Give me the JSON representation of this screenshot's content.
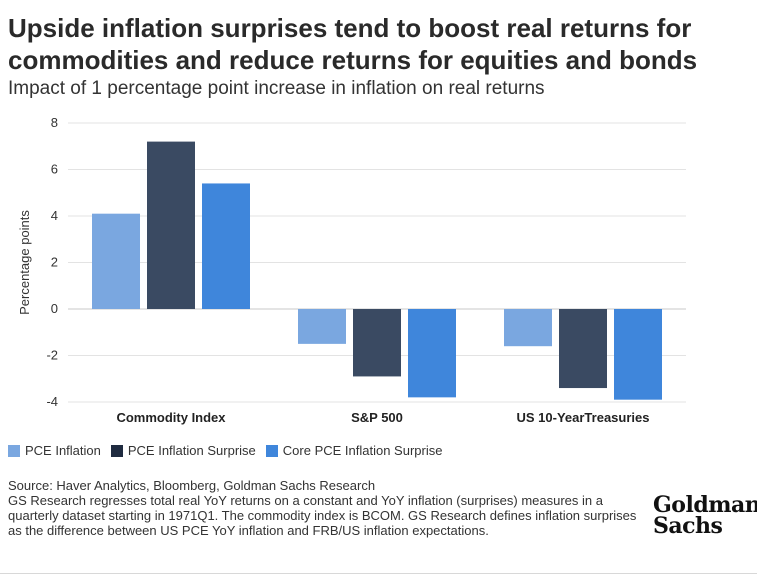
{
  "title": "Upside inflation surprises tend to boost real returns for commodities and reduce returns for equities and bonds",
  "subtitle": "Impact of 1 percentage point increase in inflation on real returns",
  "chart_data": {
    "type": "bar",
    "categories": [
      "Commodity Index",
      "S&P 500",
      "US 10-YearTreasuries"
    ],
    "series": [
      {
        "name": "PCE Inflation",
        "color": "#7aa7e0",
        "values": [
          4.1,
          -1.5,
          -1.6
        ]
      },
      {
        "name": "PCE Inflation Surprise",
        "color": "#3a4a62",
        "values": [
          7.2,
          -2.9,
          -3.4
        ]
      },
      {
        "name": "Core PCE Inflation Surprise",
        "color": "#3f86db",
        "values": [
          5.4,
          -3.8,
          -3.9
        ]
      }
    ],
    "ylabel": "Percentage points",
    "ylim": [
      -4,
      8
    ],
    "yticks": [
      "8",
      "6",
      "4",
      "2",
      "0",
      "-2",
      "-4"
    ],
    "grid": true
  },
  "legend_labels": [
    "PCE Inflation",
    "PCE Inflation Surprise",
    "Core PCE Inflation Surprise"
  ],
  "footer": {
    "source": "Source: Haver Analytics, Bloomberg, Goldman Sachs Research",
    "notes": "GS Research regresses total real YoY returns on a constant and YoY inflation (surprises) measures in a quarterly dataset starting in 1971Q1. The commodity index is BCOM. GS Research defines inflation surprises as the difference between US PCE YoY inflation and FRB/US inflation expectations."
  },
  "logo": {
    "line1": "Goldman",
    "line2": "Sachs"
  }
}
